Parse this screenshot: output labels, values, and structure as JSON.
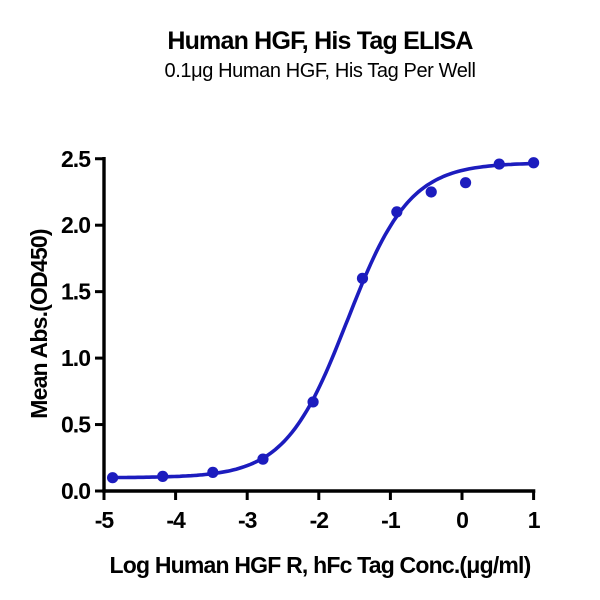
{
  "chart_data": {
    "type": "scatter",
    "title": "Human HGF, His Tag ELISA",
    "subtitle": "0.1μg Human HGF, His Tag Per Well",
    "xlabel": "Log Human HGF R, hFc Tag Conc.(μg/ml)",
    "ylabel": "Mean Abs.(OD450)",
    "xlim": [
      -5,
      1
    ],
    "ylim": [
      0,
      2.5
    ],
    "x_ticks": {
      "values": [
        -5,
        -4,
        -3,
        -2,
        -1,
        0,
        1
      ],
      "labels": [
        "-5",
        "-4",
        "-3",
        "-2",
        "-1",
        "0",
        "1"
      ]
    },
    "y_ticks": {
      "values": [
        0,
        0.5,
        1.0,
        1.5,
        2.0,
        2.5
      ],
      "labels": [
        "0.0",
        "0.5",
        "1.0",
        "1.5",
        "2.0",
        "2.5"
      ]
    },
    "grid": false,
    "legend": false,
    "series": [
      {
        "name": "Human HGF R, hFc Tag",
        "x": [
          -4.88,
          -4.18,
          -3.48,
          -2.78,
          -2.08,
          -1.39,
          -0.91,
          -0.43,
          0.05,
          0.52,
          1.0
        ],
        "y": [
          0.1,
          0.11,
          0.14,
          0.24,
          0.67,
          1.6,
          2.1,
          2.25,
          2.32,
          2.46,
          2.47
        ]
      }
    ],
    "fit_curve": {
      "model": "4PL",
      "bottom": 0.1,
      "top": 2.47,
      "log_ec50": -1.6,
      "hill": 1.0,
      "x_range": [
        -4.88,
        1.0
      ]
    },
    "colors": {
      "series": "#1c1cbe",
      "axis": "#000000",
      "text": "#000000",
      "background": "#ffffff"
    }
  }
}
